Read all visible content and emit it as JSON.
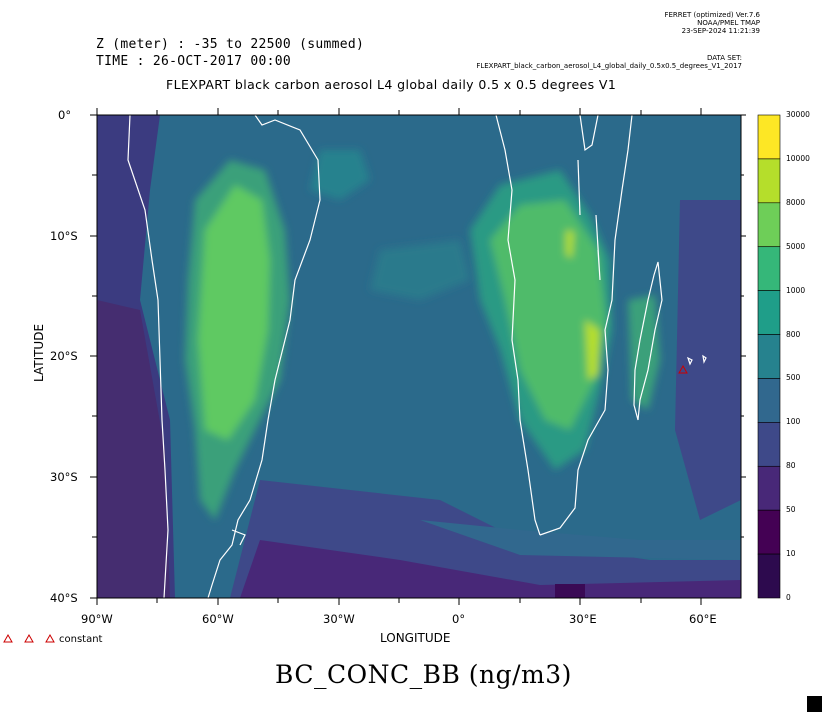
{
  "header": {
    "ferret_version": "FERRET (optimized) Ver.7.6",
    "lab": "NOAA/PMEL TMAP",
    "run_date": "23-SEP-2024 11:21:39",
    "dataset_label": "DATA SET:",
    "dataset_name": "FLEXPART_black_carbon_aerosol_L4_global_daily_0.5x0.5_degrees_V1_2017",
    "z_range": "Z (meter) : -35 to 22500 (summed)",
    "time": "TIME : 26-OCT-2017 00:00",
    "title": "FLEXPART black carbon aerosol L4 global daily 0.5 x 0.5 degrees V1"
  },
  "axes": {
    "y_label": "LATITUDE",
    "x_label": "LONGITUDE",
    "y_ticks": [
      "0°",
      "10°S",
      "20°S",
      "30°S",
      "40°S"
    ],
    "x_ticks": [
      "90°W",
      "60°W",
      "30°W",
      "0°",
      "30°E",
      "60°E"
    ]
  },
  "map": {
    "lon_range": [
      -90,
      70
    ],
    "lat_range": [
      -40,
      0
    ],
    "projection": "equirectangular",
    "coastline_color": "#ffffff",
    "marker": {
      "name": "constant",
      "color": "#cc0000"
    }
  },
  "colorbar": {
    "labels": [
      "30000",
      "10000",
      "8000",
      "5000",
      "1000",
      "800",
      "500",
      "100",
      "80",
      "50",
      "10",
      "0"
    ],
    "colors": [
      "#fde725",
      "#b5de2b",
      "#6ece58",
      "#35b779",
      "#1f9e89",
      "#26828e",
      "#31688e",
      "#3e4989",
      "#482878",
      "#440154",
      "#2d0a4e"
    ]
  },
  "legend": {
    "label": "constant"
  },
  "variable": "BC_CONC_BB (ng/m3)"
}
